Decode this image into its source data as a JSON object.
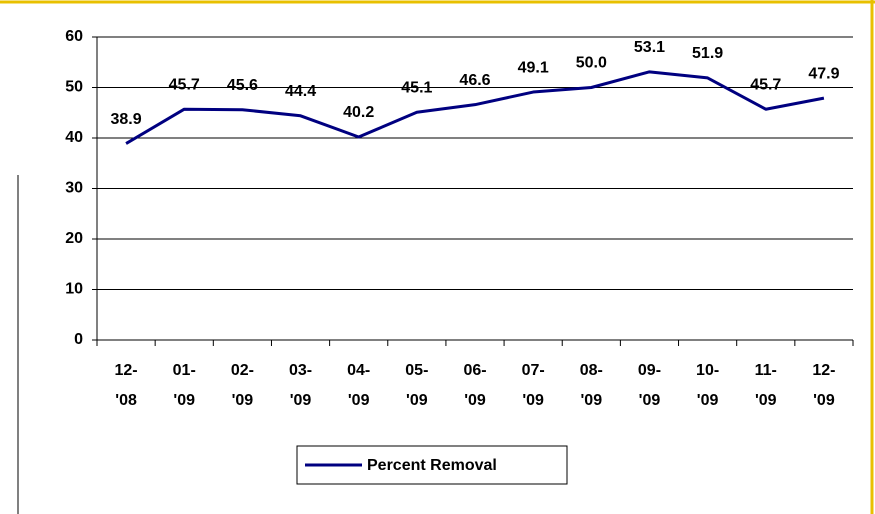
{
  "chart_data": {
    "type": "line",
    "categories": [
      "12-\n'08",
      "01-\n'09",
      "02-\n'09",
      "03-\n'09",
      "04-\n'09",
      "05-\n'09",
      "06-\n'09",
      "07-\n'09",
      "08-\n'09",
      "09-\n'09",
      "10-\n'09",
      "11-\n'09",
      "12-\n'09"
    ],
    "series": [
      {
        "name": "Percent Removal",
        "color": "#000080",
        "values": [
          38.9,
          45.7,
          45.6,
          44.4,
          40.2,
          45.1,
          46.6,
          49.1,
          50.0,
          53.1,
          51.9,
          45.7,
          47.9
        ],
        "value_labels": [
          "38.9",
          "45.7",
          "45.6",
          "44.4",
          "40.2",
          "45.1",
          "46.6",
          "49.1",
          "50.0",
          "53.1",
          "51.9",
          "45.7",
          "47.9"
        ]
      }
    ],
    "ylim": [
      0,
      60
    ],
    "yticks": [
      0,
      10,
      20,
      30,
      40,
      50,
      60
    ],
    "grid": true,
    "legend": "bottom"
  }
}
